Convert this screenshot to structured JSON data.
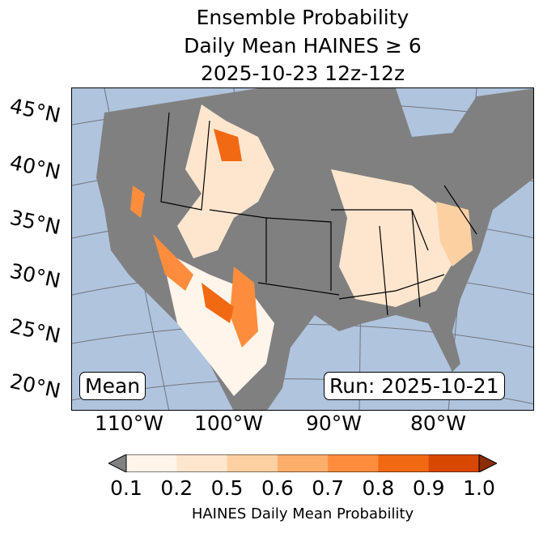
{
  "title": {
    "line1": "Ensemble Probability",
    "line2": "Daily Mean HAINES ≥ 6",
    "line3": "2025-10-23 12z-12z"
  },
  "lat_labels": [
    "45°N",
    "40°N",
    "35°N",
    "30°N",
    "25°N",
    "20°N"
  ],
  "lon_labels": [
    "110°W",
    "100°W",
    "90°W",
    "80°W"
  ],
  "mean_box": "Mean",
  "run_box": "Run: 2025-10-21",
  "colorbar": {
    "label": "HAINES Daily Mean Probability",
    "ticks": [
      "0.1",
      "0.2",
      "0.5",
      "0.6",
      "0.7",
      "0.8",
      "0.9",
      "1.0"
    ],
    "colors": [
      "#fff5eb",
      "#fee6ce",
      "#fdd0a2",
      "#fdae6b",
      "#fd8d3c",
      "#f16913",
      "#d94801"
    ],
    "under_color": "#808080",
    "over_color": "#8c2d04"
  },
  "map_colors": {
    "ocean": "#b0c4de",
    "land_below": "#808080"
  }
}
